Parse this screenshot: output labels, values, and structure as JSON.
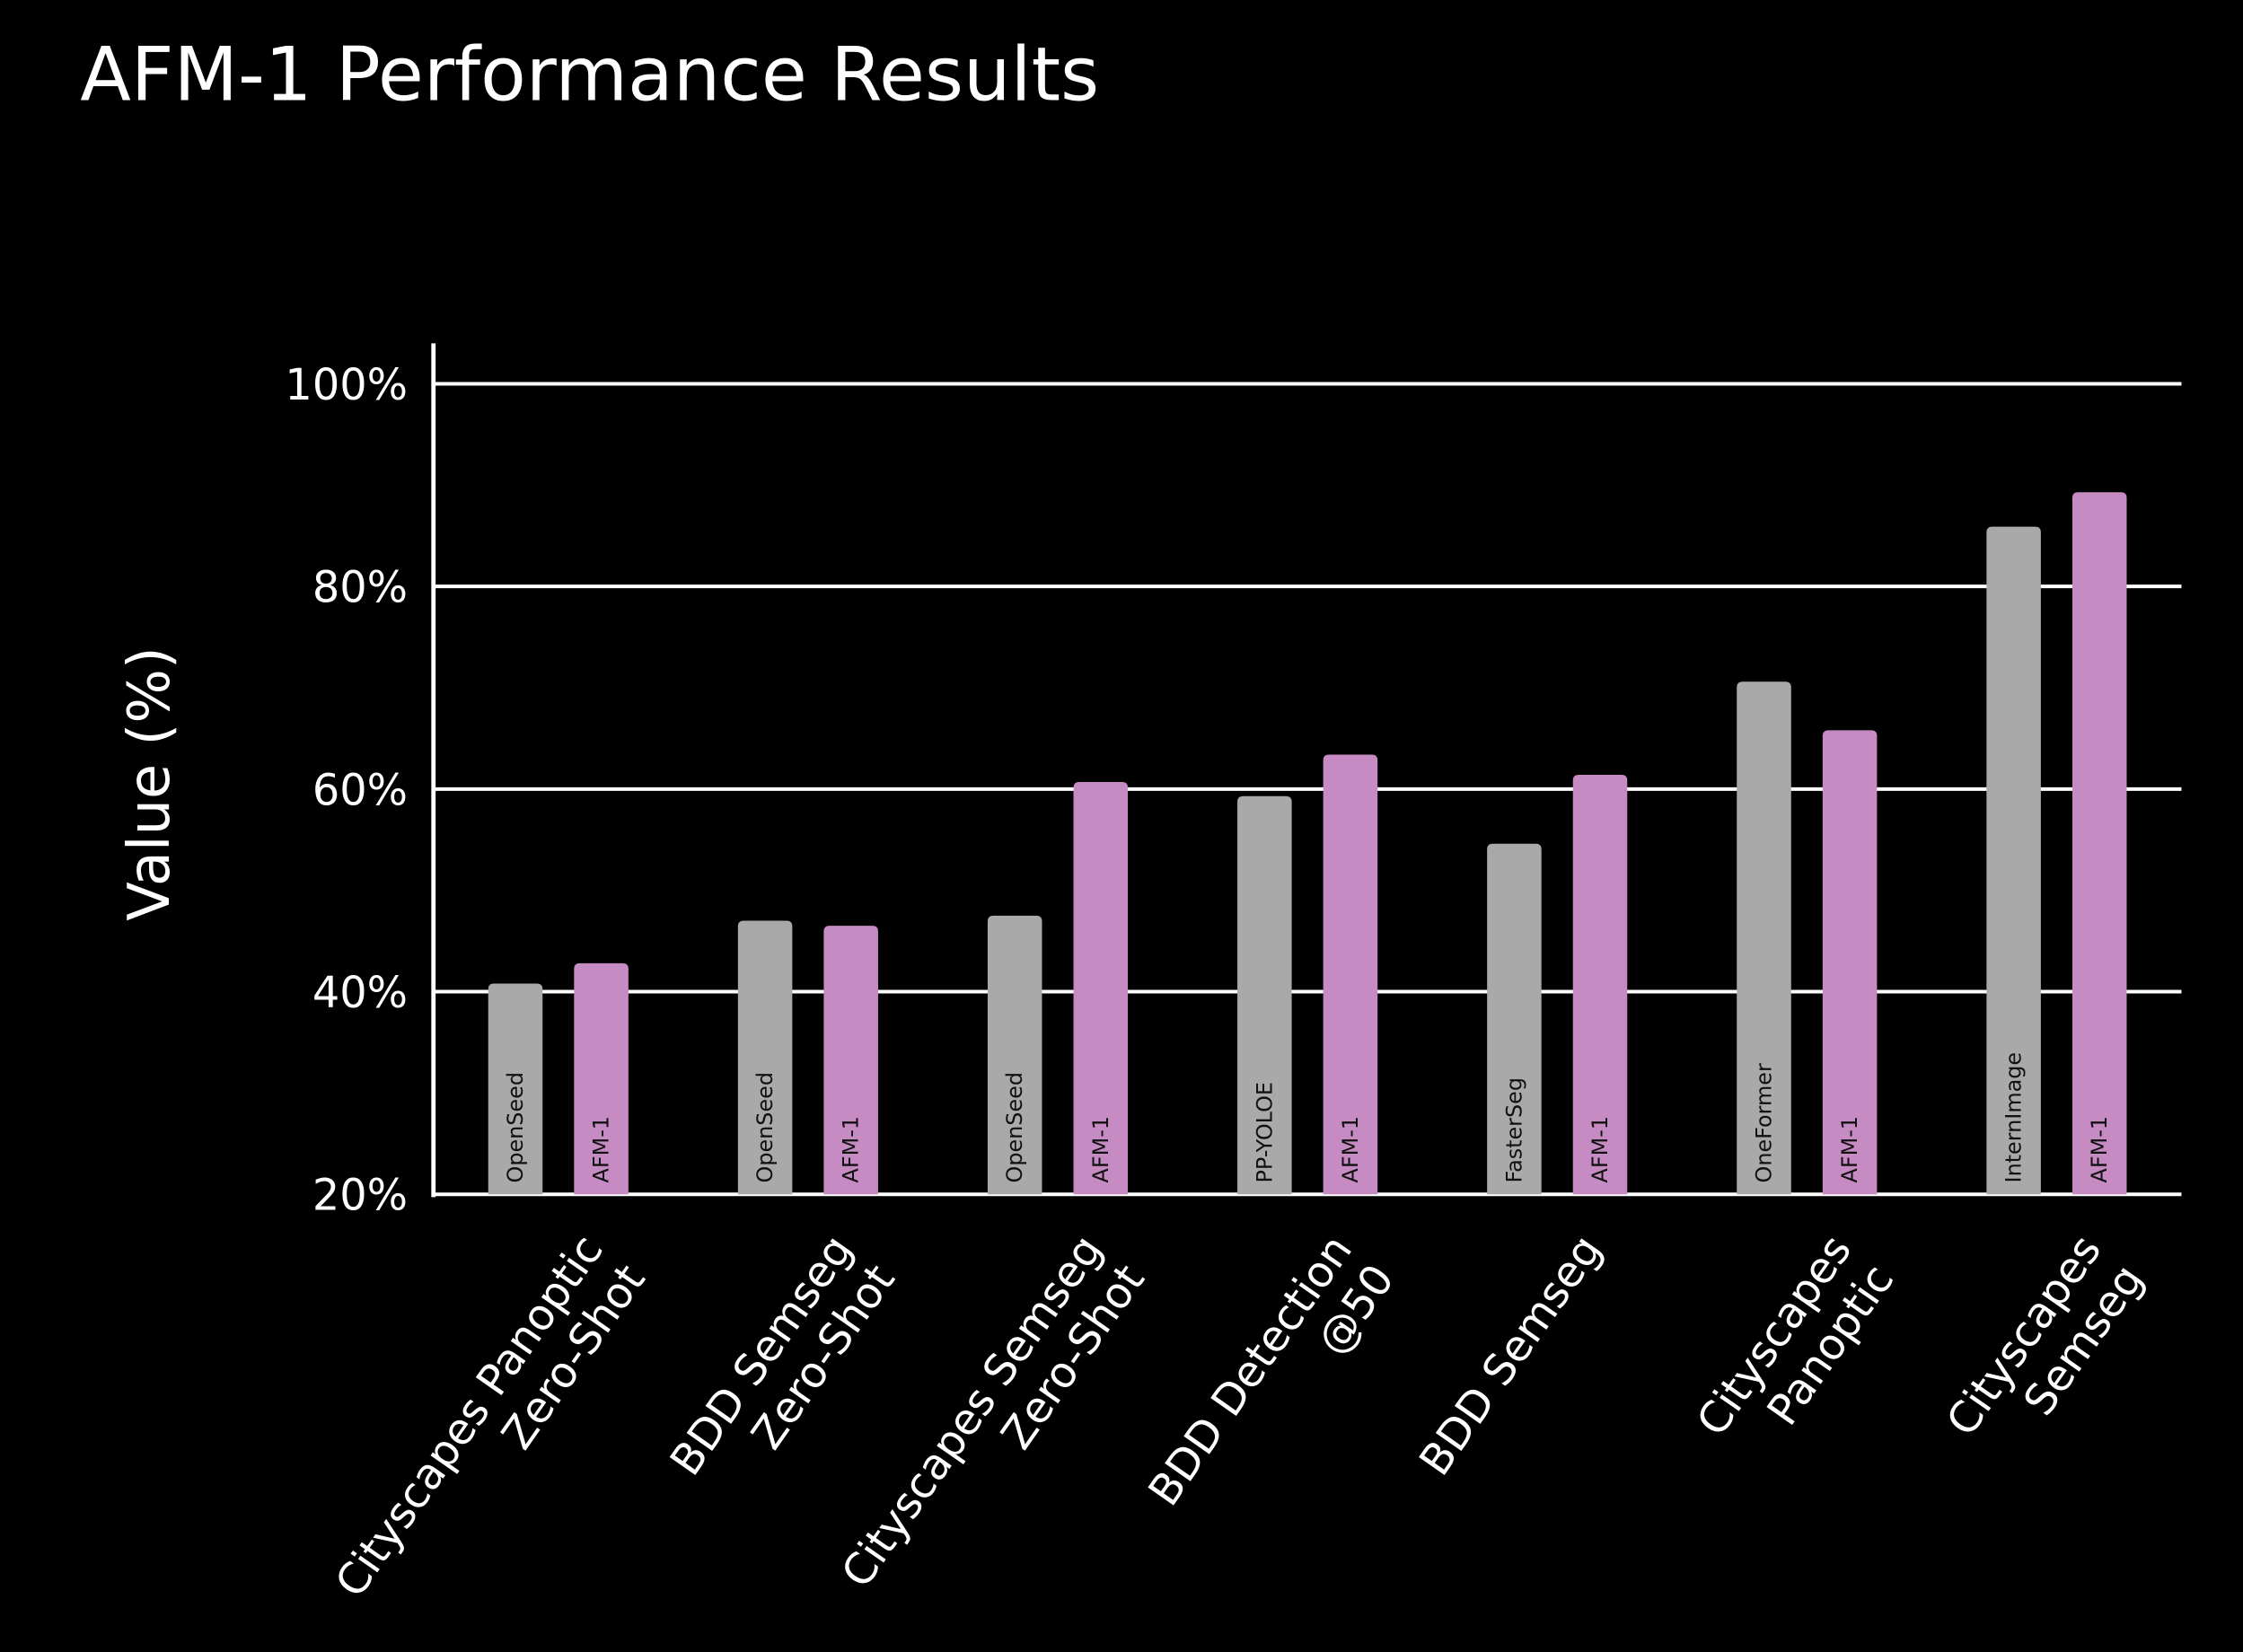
{
  "chart_data": {
    "type": "bar",
    "title": "AFM-1 Performance Results",
    "y_label": "Value (%)",
    "categories": [
      "Cityscapes Panoptic\nZero-Shot",
      "BDD Semseg\nZero-Shot",
      "Cityscapes Semseg\nZero-Shot",
      "BDD Detection\n@50",
      "BDD Semseg",
      "Cityscapes\nPanoptic",
      "Cityscapes\nSemseg"
    ],
    "series": [
      {
        "color": "#a9a9a9",
        "bar_labels": [
          "OpenSeed",
          "OpenSeed",
          "OpenSeed",
          "PP-YOLOE",
          "FasterSeg",
          "OneFormer",
          "InternImage"
        ],
        "values": [
          40.8,
          47,
          47.5,
          59.3,
          54.6,
          70.6,
          85.9
        ]
      },
      {
        "color": "#c78bc3",
        "bar_labels": [
          "AFM-1",
          "AFM-1",
          "AFM-1",
          "AFM-1",
          "AFM-1",
          "AFM-1",
          "AFM-1"
        ],
        "values": [
          42.8,
          46.5,
          60.7,
          63.4,
          61.4,
          65.8,
          89.3
        ]
      }
    ],
    "ylim": [
      20,
      104
    ],
    "yticks": [
      {
        "value": 20,
        "label": "20%"
      },
      {
        "value": 40,
        "label": "40%"
      },
      {
        "value": 60,
        "label": "60%"
      },
      {
        "value": 80,
        "label": "80%"
      },
      {
        "value": 100,
        "label": "100%"
      }
    ],
    "grid": true
  }
}
